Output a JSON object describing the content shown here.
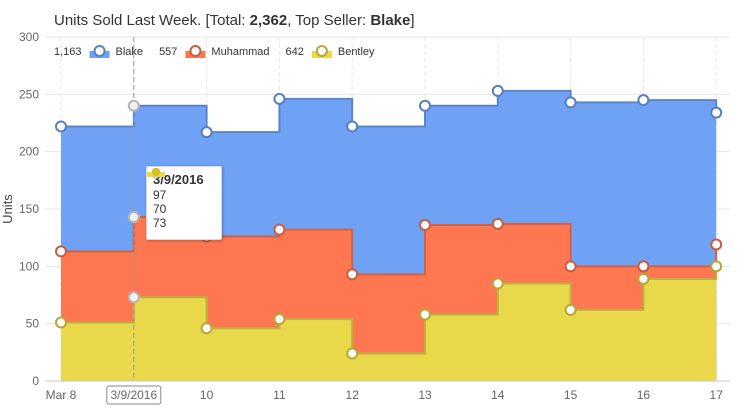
{
  "title": {
    "prefix": "Units Sold Last Week. [Total: ",
    "total": "2,362",
    "mid": ", Top Seller: ",
    "top_seller": "Blake",
    "suffix": "]"
  },
  "chart_data": {
    "type": "area",
    "step": true,
    "stacked": true,
    "categories": [
      "Mar 8",
      "3/9/2016",
      "10",
      "11",
      "12",
      "13",
      "14",
      "15",
      "16",
      "17"
    ],
    "ylabel": "Units",
    "ylim": [
      0,
      300
    ],
    "yticks": [
      0,
      50,
      100,
      150,
      200,
      250,
      300
    ],
    "grid": true,
    "legend_position": "top-left",
    "series": [
      {
        "name": "Bentley",
        "total": "642",
        "color": "#e8d84a",
        "values": [
          51,
          73,
          46,
          54,
          24,
          58,
          85,
          62,
          89,
          100
        ]
      },
      {
        "name": "Muhammad",
        "total": "557",
        "color": "#ff7750",
        "values": [
          62,
          70,
          80,
          78,
          69,
          78,
          52,
          38,
          11,
          19
        ]
      },
      {
        "name": "Blake",
        "total": "1,163",
        "color": "#6fa2f5",
        "values": [
          109,
          97,
          91,
          114,
          129,
          104,
          116,
          143,
          145,
          115
        ]
      }
    ],
    "tooltip": {
      "category": "3/9/2016",
      "rows": [
        {
          "series": "Blake",
          "value": "97"
        },
        {
          "series": "Muhammad",
          "value": "70"
        },
        {
          "series": "Bentley",
          "value": "73"
        }
      ]
    },
    "highlight_category": "3/9/2016"
  }
}
